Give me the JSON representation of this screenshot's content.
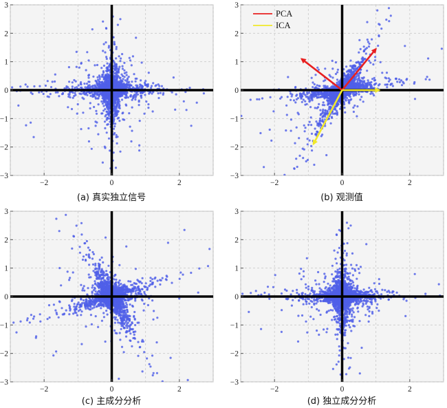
{
  "colors": {
    "points": "#4f5fe8",
    "pca": "#e82020",
    "ica": "#f0e82a",
    "axis": "#000000"
  },
  "legend": [
    {
      "label": "PCA",
      "color": "#e82020"
    },
    {
      "label": "ICA",
      "color": "#f0e82a"
    }
  ],
  "chart_data": [
    {
      "type": "scatter",
      "caption": "(a) 真实独立信号",
      "xlim": [
        -3,
        3
      ],
      "ylim": [
        -3,
        3
      ],
      "xticks": [
        -2,
        0,
        2
      ],
      "yticks": [
        3,
        2,
        1,
        0,
        -1,
        -2,
        -3
      ],
      "xtick_labels": [
        "−2",
        "0",
        "2"
      ],
      "ytick_labels": [
        "3",
        "2",
        "1",
        "0",
        "−1",
        "−2",
        "−3"
      ],
      "grid": true,
      "distribution": {
        "kind": "sparse-axes",
        "directions": [
          [
            1,
            0
          ],
          [
            0,
            1
          ]
        ]
      },
      "arrows": []
    },
    {
      "type": "scatter",
      "caption": "(b) 观测值",
      "xlim": [
        -3,
        3
      ],
      "ylim": [
        -3,
        3
      ],
      "xticks": [
        -2,
        0,
        2
      ],
      "yticks": [
        3,
        2,
        1,
        0,
        -1,
        -2,
        -3
      ],
      "xtick_labels": [
        "−2",
        "0",
        "2"
      ],
      "ytick_labels": [
        "3",
        "2",
        "1",
        "0",
        "−1",
        "−2",
        "−3"
      ],
      "grid": true,
      "distribution": {
        "kind": "mixed",
        "directions": [
          [
            1,
            0.15
          ],
          [
            0.5,
            1
          ]
        ]
      },
      "arrows": [
        {
          "series": "PCA",
          "from": [
            0,
            0
          ],
          "to": [
            1.0,
            1.45
          ]
        },
        {
          "series": "PCA",
          "from": [
            0,
            0
          ],
          "to": [
            -1.2,
            1.1
          ]
        },
        {
          "series": "ICA",
          "from": [
            0,
            0
          ],
          "to": [
            1.1,
            0.0
          ]
        },
        {
          "series": "ICA",
          "from": [
            0,
            0
          ],
          "to": [
            -0.85,
            -1.9
          ]
        }
      ]
    },
    {
      "type": "scatter",
      "caption": "(c) 主成分分析",
      "xlim": [
        -3,
        3
      ],
      "ylim": [
        -3,
        3
      ],
      "xticks": [
        -2,
        0,
        2
      ],
      "yticks": [
        3,
        2,
        1,
        0,
        -1,
        -2,
        -3
      ],
      "xtick_labels": [
        "−2",
        "0",
        "2"
      ],
      "ytick_labels": [
        "3",
        "2",
        "1",
        "0",
        "−1",
        "−2",
        "−3"
      ],
      "grid": true,
      "distribution": {
        "kind": "rotated",
        "directions": [
          [
            0.9,
            0.33
          ],
          [
            -0.45,
            1
          ]
        ]
      },
      "arrows": []
    },
    {
      "type": "scatter",
      "caption": "(d) 独立成分分析",
      "xlim": [
        -3,
        3
      ],
      "ylim": [
        -3,
        3
      ],
      "xticks": [
        -2,
        0,
        2
      ],
      "yticks": [
        3,
        2,
        1,
        0,
        -1,
        -2,
        -3
      ],
      "xtick_labels": [
        "−2",
        "0",
        "2"
      ],
      "ytick_labels": [
        "3",
        "2",
        "1",
        "0",
        "−1",
        "−2",
        "−3"
      ],
      "grid": true,
      "distribution": {
        "kind": "sparse-axes",
        "directions": [
          [
            1,
            0
          ],
          [
            0,
            1
          ]
        ]
      },
      "arrows": []
    }
  ]
}
